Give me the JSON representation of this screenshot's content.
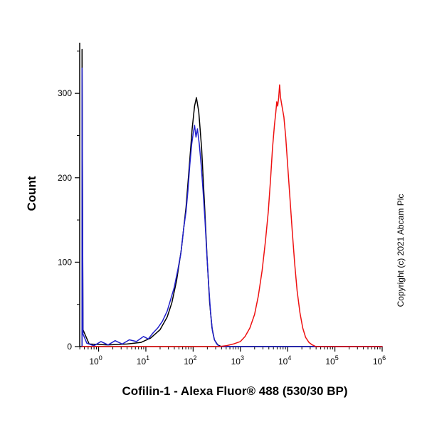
{
  "page": {
    "x_axis_title": "Cofilin-1 - Alexa Fluor® 488 (530/30 BP)",
    "y_axis_label": "Count",
    "copyright": "Copyright (c) 2021 Abcam Plc"
  },
  "chart_data": {
    "type": "line",
    "subtype": "flow-cytometry-histogram-overlay",
    "title": "",
    "xlabel": "Cofilin-1 - Alexa Fluor® 488 (530/30 BP)",
    "ylabel": "Count",
    "x_scale": "log10",
    "x_range_log10": [
      -0.4,
      6
    ],
    "ylim": [
      0,
      360
    ],
    "x_major_tick_exponents": [
      0,
      1,
      2,
      3,
      4,
      5,
      6
    ],
    "y_major_ticks": [
      0,
      100,
      200,
      300
    ],
    "y_minor_step": 50,
    "grid": false,
    "legend": "none",
    "axis_color": "#000000",
    "series": [
      {
        "name": "black-curve",
        "color": "#000000",
        "peak_approx": {
          "x": 110,
          "count": 295
        },
        "points_log10x_count": [
          [
            -0.35,
            0
          ],
          [
            -0.35,
            352
          ],
          [
            -0.33,
            20
          ],
          [
            -0.2,
            3
          ],
          [
            0.2,
            2
          ],
          [
            0.6,
            3
          ],
          [
            0.9,
            5
          ],
          [
            1.1,
            10
          ],
          [
            1.3,
            20
          ],
          [
            1.45,
            35
          ],
          [
            1.55,
            52
          ],
          [
            1.65,
            78
          ],
          [
            1.75,
            115
          ],
          [
            1.85,
            165
          ],
          [
            1.92,
            215
          ],
          [
            1.98,
            258
          ],
          [
            2.03,
            285
          ],
          [
            2.07,
            295
          ],
          [
            2.12,
            278
          ],
          [
            2.18,
            235
          ],
          [
            2.24,
            170
          ],
          [
            2.3,
            100
          ],
          [
            2.35,
            52
          ],
          [
            2.4,
            22
          ],
          [
            2.45,
            8
          ],
          [
            2.52,
            2
          ],
          [
            2.6,
            0
          ],
          [
            6,
            0
          ]
        ]
      },
      {
        "name": "blue-curve",
        "color": "#2020cc",
        "peak_approx": {
          "x": 105,
          "count": 265
        },
        "points_log10x_count": [
          [
            -0.35,
            0
          ],
          [
            -0.35,
            330
          ],
          [
            -0.33,
            15
          ],
          [
            -0.25,
            4
          ],
          [
            -0.1,
            1
          ],
          [
            0.05,
            6
          ],
          [
            0.2,
            2
          ],
          [
            0.35,
            7
          ],
          [
            0.5,
            3
          ],
          [
            0.65,
            8
          ],
          [
            0.8,
            6
          ],
          [
            0.95,
            12
          ],
          [
            1.05,
            9
          ],
          [
            1.15,
            16
          ],
          [
            1.25,
            22
          ],
          [
            1.35,
            30
          ],
          [
            1.45,
            42
          ],
          [
            1.52,
            55
          ],
          [
            1.6,
            70
          ],
          [
            1.68,
            92
          ],
          [
            1.74,
            110
          ],
          [
            1.8,
            140
          ],
          [
            1.85,
            160
          ],
          [
            1.89,
            185
          ],
          [
            1.93,
            215
          ],
          [
            1.97,
            240
          ],
          [
            2.0,
            252
          ],
          [
            2.03,
            262
          ],
          [
            2.06,
            248
          ],
          [
            2.09,
            258
          ],
          [
            2.13,
            240
          ],
          [
            2.17,
            215
          ],
          [
            2.21,
            185
          ],
          [
            2.25,
            150
          ],
          [
            2.29,
            110
          ],
          [
            2.33,
            72
          ],
          [
            2.37,
            40
          ],
          [
            2.41,
            18
          ],
          [
            2.45,
            8
          ],
          [
            2.5,
            3
          ],
          [
            2.56,
            0
          ],
          [
            6,
            0
          ]
        ]
      },
      {
        "name": "red-curve",
        "color": "#ee1111",
        "peak_approx": {
          "x": 6800,
          "count": 310
        },
        "points_log10x_count": [
          [
            -0.35,
            0
          ],
          [
            2.55,
            0
          ],
          [
            2.7,
            1
          ],
          [
            2.85,
            3
          ],
          [
            3.0,
            6
          ],
          [
            3.1,
            12
          ],
          [
            3.2,
            22
          ],
          [
            3.3,
            38
          ],
          [
            3.38,
            60
          ],
          [
            3.46,
            90
          ],
          [
            3.53,
            125
          ],
          [
            3.59,
            160
          ],
          [
            3.64,
            200
          ],
          [
            3.68,
            235
          ],
          [
            3.72,
            262
          ],
          [
            3.75,
            278
          ],
          [
            3.77,
            290
          ],
          [
            3.79,
            285
          ],
          [
            3.81,
            295
          ],
          [
            3.83,
            310
          ],
          [
            3.85,
            295
          ],
          [
            3.88,
            285
          ],
          [
            3.92,
            272
          ],
          [
            3.96,
            248
          ],
          [
            4.0,
            215
          ],
          [
            4.05,
            175
          ],
          [
            4.1,
            135
          ],
          [
            4.15,
            98
          ],
          [
            4.2,
            66
          ],
          [
            4.26,
            40
          ],
          [
            4.32,
            22
          ],
          [
            4.38,
            11
          ],
          [
            4.45,
            5
          ],
          [
            4.52,
            2
          ],
          [
            4.6,
            0
          ],
          [
            6,
            0
          ]
        ]
      }
    ]
  }
}
